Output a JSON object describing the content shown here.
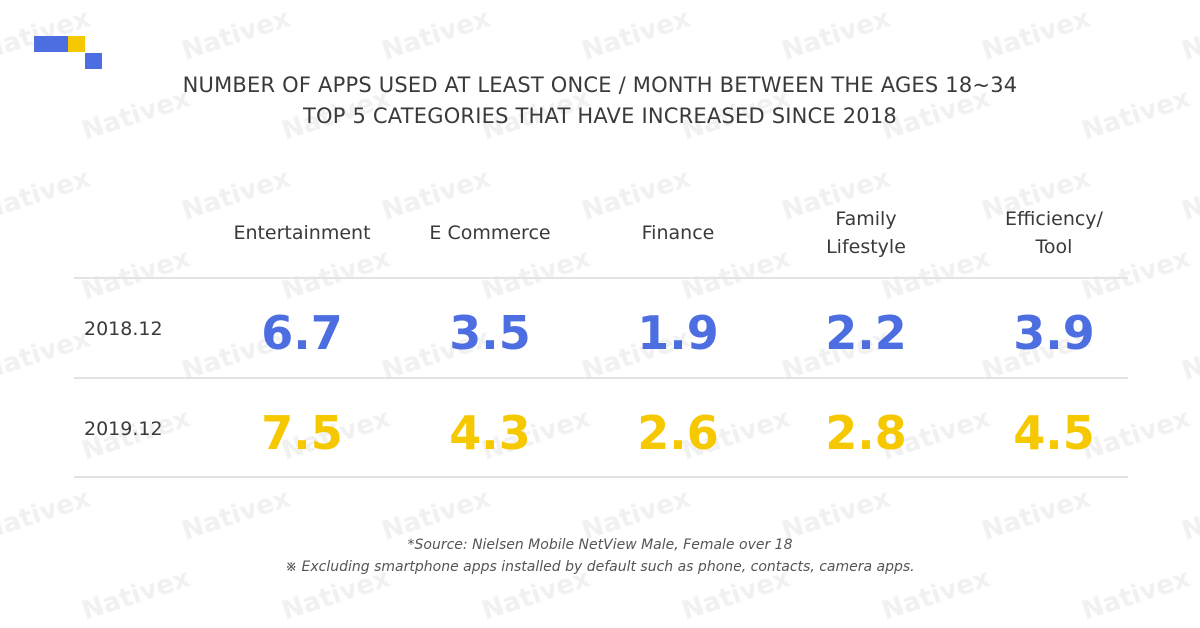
{
  "logo_colors": {
    "blue": "#4c6ee0",
    "yellow": "#f5c800"
  },
  "watermark": "Nativex",
  "chart_data": {
    "type": "table",
    "title_lines": [
      "NUMBER OF APPS USED AT LEAST ONCE / MONTH BETWEEN THE AGES 18~34",
      "TOP 5 CATEGORIES THAT HAVE INCREASED SINCE 2018"
    ],
    "categories": [
      "Entertainment",
      "E Commerce",
      "Finance",
      "Family\nLifestyle",
      "Efficiency/\nTool"
    ],
    "series": [
      {
        "name": "2018.12",
        "color": "#4c6ee0",
        "values": [
          "6.7",
          "3.5",
          "1.9",
          "2.2",
          "3.9"
        ]
      },
      {
        "name": "2019.12",
        "color": "#f5c800",
        "values": [
          "7.5",
          "4.3",
          "2.6",
          "2.8",
          "4.5"
        ]
      }
    ],
    "notes": [
      "*Source: Nielsen Mobile NetView Male, Female over 18",
      "※ Excluding smartphone apps installed by default such as phone, contacts, camera apps."
    ]
  }
}
